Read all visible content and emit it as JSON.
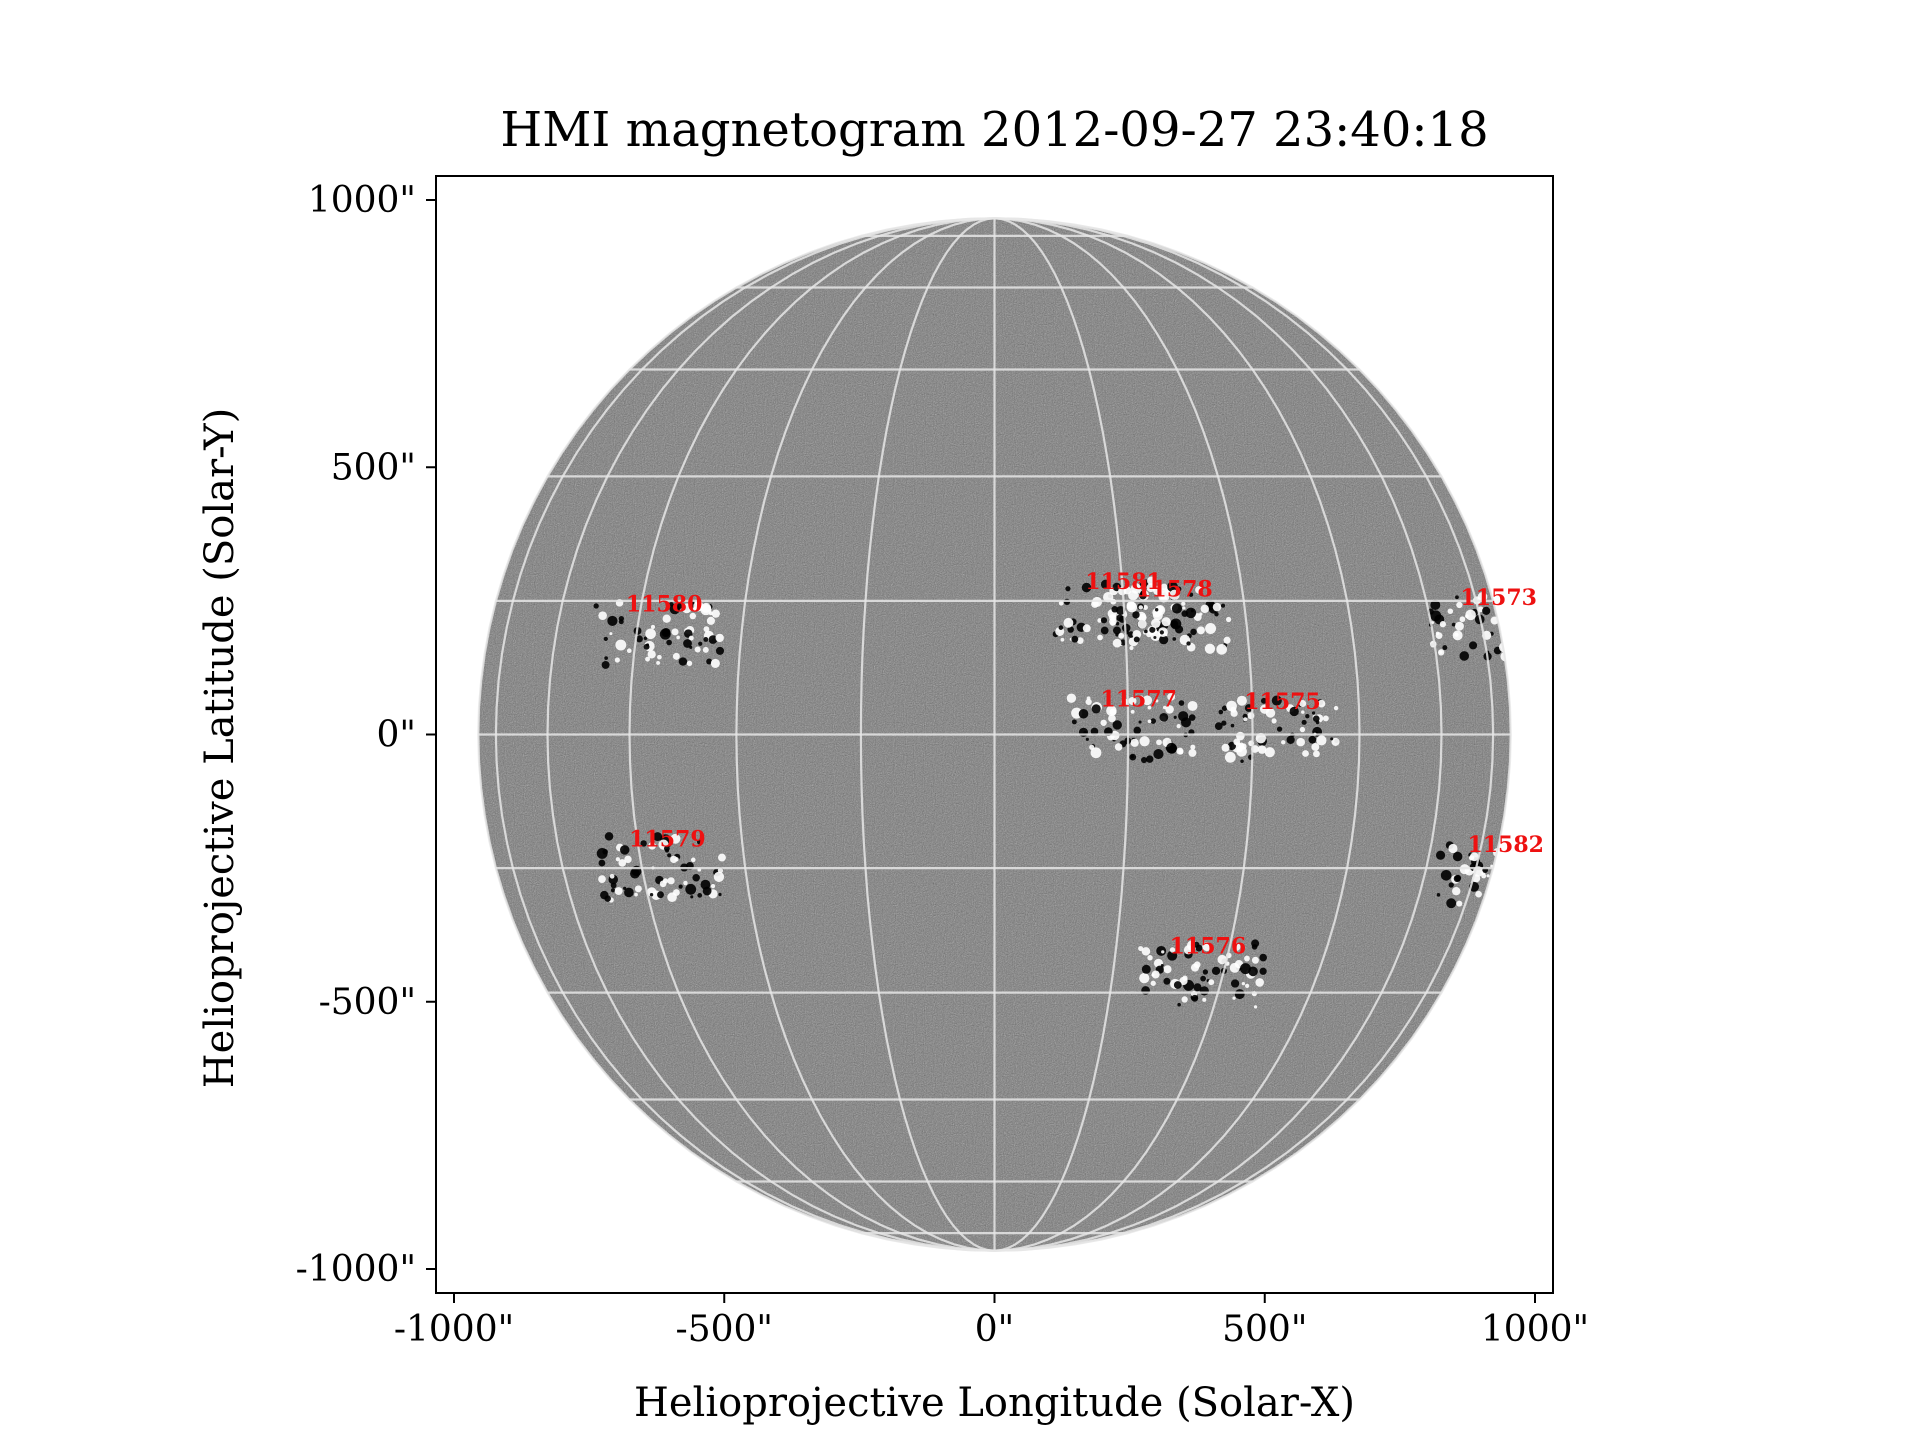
{
  "title": "HMI magnetogram 2012-09-27 23:40:18",
  "x_axis": {
    "label": "Helioprojective Longitude (Solar-X)",
    "ticks": [
      {
        "value": -1000,
        "label": "-1000\""
      },
      {
        "value": -500,
        "label": "-500\""
      },
      {
        "value": 0,
        "label": "0\""
      },
      {
        "value": 500,
        "label": "500\""
      },
      {
        "value": 1000,
        "label": "1000\""
      }
    ],
    "range": [
      -1000,
      1000
    ]
  },
  "y_axis": {
    "label": "Helioprojective Latitude (Solar-Y)",
    "ticks": [
      {
        "value": 1000,
        "label": "1000\""
      },
      {
        "value": 500,
        "label": "500\""
      },
      {
        "value": 0,
        "label": "0\""
      },
      {
        "value": -500,
        "label": "-500\""
      },
      {
        "value": -1000,
        "label": "-1000\""
      }
    ],
    "range": [
      -1000,
      1000
    ]
  },
  "solar_radius_arcsec": 955,
  "grid": {
    "latitude_step_deg": 15,
    "longitude_step_deg": 15,
    "color": "#e6e6e6"
  },
  "colors": {
    "disk": "#7a7a7a",
    "positive_polarity": "#ffffff",
    "negative_polarity": "#000000",
    "annotation": "#ee1111"
  },
  "active_regions": [
    {
      "number": "11580",
      "x": -682,
      "y": 230
    },
    {
      "number": "11581",
      "x": 168,
      "y": 272
    },
    {
      "number": "11578",
      "x": 262,
      "y": 258
    },
    {
      "number": "11573",
      "x": 862,
      "y": 242
    },
    {
      "number": "11577",
      "x": 196,
      "y": 52
    },
    {
      "number": "11575",
      "x": 462,
      "y": 48
    },
    {
      "number": "11582",
      "x": 875,
      "y": -220
    },
    {
      "number": "11579",
      "x": -676,
      "y": -210
    },
    {
      "number": "11576",
      "x": 324,
      "y": -410
    }
  ]
}
